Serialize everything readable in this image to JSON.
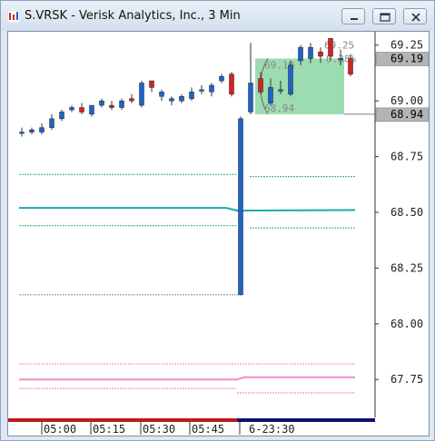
{
  "window": {
    "title": "S.VRSK - Verisk Analytics, Inc., 3 Min",
    "controls": [
      "minimize-icon",
      "restore-icon",
      "close-icon"
    ]
  },
  "colors": {
    "up_candle": "#1e64c8",
    "down_candle": "#d82020",
    "vwap": "#1aaab0",
    "band_green": "#2bb55a",
    "band_pink": "#e67ed6",
    "pink_mid": "#f08cc8",
    "zone_fill": "#7ccf95",
    "marker_blue": "#0a1070",
    "marker_red": "#c01818"
  },
  "chart_data": {
    "type": "candlestick",
    "symbol": "S.VRSK",
    "interval": "3 Min",
    "ylim": [
      67.58,
      69.31
    ],
    "y_ticks": [
      "69.25",
      "69.00",
      "68.75",
      "68.50",
      "68.25",
      "68.00",
      "67.75"
    ],
    "x_ticks": [
      "05:00",
      "05:15",
      "05:30",
      "05:45",
      "6-23:30"
    ],
    "price_boxes": [
      {
        "label": "69.19",
        "value": 69.19
      },
      {
        "label": "68.94",
        "value": 68.94
      }
    ],
    "zone": {
      "high": 69.19,
      "low": 68.94,
      "high_label": "69.19",
      "low_label": "68.94"
    },
    "faded_labels": [
      "69.25",
      "0.38%"
    ],
    "candles_prev": [
      {
        "o": 68.86,
        "h": 68.88,
        "l": 68.84,
        "c": 68.86
      },
      {
        "o": 68.86,
        "h": 68.88,
        "l": 68.85,
        "c": 68.87
      },
      {
        "o": 68.86,
        "h": 68.9,
        "l": 68.85,
        "c": 68.88
      },
      {
        "o": 68.88,
        "h": 68.94,
        "l": 68.87,
        "c": 68.92
      },
      {
        "o": 68.92,
        "h": 68.96,
        "l": 68.91,
        "c": 68.95
      },
      {
        "o": 68.96,
        "h": 68.98,
        "l": 68.95,
        "c": 68.97
      },
      {
        "o": 68.97,
        "h": 68.99,
        "l": 68.94,
        "c": 68.95
      },
      {
        "o": 68.94,
        "h": 68.98,
        "l": 68.93,
        "c": 68.98
      },
      {
        "o": 68.98,
        "h": 69.01,
        "l": 68.97,
        "c": 69.0
      },
      {
        "o": 68.98,
        "h": 69.0,
        "l": 68.96,
        "c": 68.97
      },
      {
        "o": 68.97,
        "h": 69.01,
        "l": 68.96,
        "c": 69.0
      },
      {
        "o": 69.01,
        "h": 69.03,
        "l": 68.99,
        "c": 69.0
      },
      {
        "o": 68.98,
        "h": 69.09,
        "l": 68.97,
        "c": 69.08
      },
      {
        "o": 69.09,
        "h": 69.09,
        "l": 69.04,
        "c": 69.06
      },
      {
        "o": 69.02,
        "h": 69.05,
        "l": 69.0,
        "c": 69.04
      },
      {
        "o": 69.0,
        "h": 69.02,
        "l": 68.98,
        "c": 69.01
      },
      {
        "o": 69.0,
        "h": 69.03,
        "l": 68.99,
        "c": 69.02
      },
      {
        "o": 69.01,
        "h": 69.06,
        "l": 69.0,
        "c": 69.04
      },
      {
        "o": 69.05,
        "h": 69.07,
        "l": 69.03,
        "c": 69.05
      },
      {
        "o": 69.04,
        "h": 69.08,
        "l": 69.02,
        "c": 69.07
      },
      {
        "o": 69.09,
        "h": 69.12,
        "l": 69.08,
        "c": 69.11
      },
      {
        "o": 69.12,
        "h": 69.13,
        "l": 69.02,
        "c": 69.03
      }
    ],
    "candles_today": [
      {
        "o": 68.13,
        "h": 68.93,
        "l": 68.13,
        "c": 68.92
      },
      {
        "o": 68.95,
        "h": 69.26,
        "l": 68.94,
        "c": 69.08
      },
      {
        "o": 69.1,
        "h": 69.13,
        "l": 69.03,
        "c": 69.04
      },
      {
        "o": 68.99,
        "h": 69.1,
        "l": 68.98,
        "c": 69.06
      },
      {
        "o": 69.05,
        "h": 69.09,
        "l": 69.03,
        "c": 69.05
      },
      {
        "o": 69.03,
        "h": 69.18,
        "l": 69.02,
        "c": 69.16
      },
      {
        "o": 69.18,
        "h": 69.25,
        "l": 69.16,
        "c": 69.24
      },
      {
        "o": 69.19,
        "h": 69.26,
        "l": 69.17,
        "c": 69.24
      },
      {
        "o": 69.22,
        "h": 69.24,
        "l": 69.17,
        "c": 69.2
      },
      {
        "o": 69.28,
        "h": 69.28,
        "l": 69.18,
        "c": 69.2
      },
      {
        "o": 69.19,
        "h": 69.23,
        "l": 69.16,
        "c": 69.19
      },
      {
        "o": 69.19,
        "h": 69.21,
        "l": 69.11,
        "c": 69.12
      }
    ],
    "indicator_levels": {
      "prev": {
        "green_upper": 68.67,
        "vwap": 68.52,
        "green_lower": 68.44,
        "pink_upper": 67.82,
        "pink_mid": 67.75,
        "pink_lower": 67.71,
        "gray_low": 68.13
      },
      "today": {
        "green_upper": 68.66,
        "vwap": 68.51,
        "green_lower": 68.43,
        "pink_upper": 67.82,
        "pink_mid": 67.76,
        "pink_lower": 67.69
      }
    }
  }
}
